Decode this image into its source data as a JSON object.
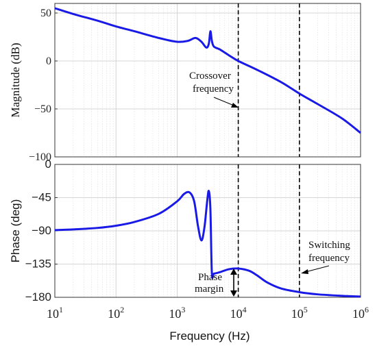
{
  "chart_data": [
    {
      "type": "line",
      "panel": "magnitude",
      "ylabel": "Magnitude (dB)",
      "xscale": "log",
      "xlim": [
        10,
        1000000
      ],
      "ylim": [
        -100,
        60
      ],
      "yticks": [
        -100,
        -50,
        0,
        50
      ],
      "ytick_labels": [
        "−100",
        "−50",
        "0",
        "50"
      ],
      "grid": true,
      "series": [
        {
          "x": [
            10,
            20,
            50,
            100,
            200,
            500,
            1000,
            1500,
            2000,
            2500,
            3000,
            3300,
            3500,
            3700,
            4000,
            5000,
            7000,
            10000,
            20000,
            50000,
            100000,
            200000,
            500000,
            1000000
          ],
          "values": [
            55,
            49,
            42,
            36,
            31,
            24,
            20,
            21,
            24,
            20,
            14,
            18,
            31,
            21,
            15,
            12,
            6,
            0,
            -9,
            -22,
            -34,
            -45,
            -60,
            -75
          ]
        }
      ],
      "vlines": [
        10000,
        100000
      ],
      "annotations": [
        {
          "text": [
            "Crossover",
            "frequency"
          ],
          "arrow_to": [
            10000,
            -50
          ]
        }
      ]
    },
    {
      "type": "line",
      "panel": "phase",
      "ylabel": "Phase (deg)",
      "xlabel": "Frequency  (Hz)",
      "xscale": "log",
      "xlim": [
        10,
        1000000
      ],
      "ylim": [
        -180,
        0
      ],
      "yticks": [
        -180,
        -135,
        -90,
        -45,
        0
      ],
      "ytick_labels": [
        "−180",
        "−135",
        "−90",
        "−45",
        "0"
      ],
      "xticks": [
        10,
        100,
        1000,
        10000,
        100000,
        1000000
      ],
      "xtick_labels": [
        [
          "10",
          "1"
        ],
        [
          "10",
          "2"
        ],
        [
          "10",
          "3"
        ],
        [
          "10",
          "4"
        ],
        [
          "10",
          "5"
        ],
        [
          "10",
          "6"
        ]
      ],
      "grid": true,
      "series": [
        {
          "x": [
            10,
            20,
            50,
            100,
            200,
            500,
            1000,
            1300,
            1600,
            1900,
            2200,
            2500,
            2800,
            3100,
            3300,
            3500,
            3700,
            4000,
            5000,
            7000,
            10000,
            15000,
            20000,
            30000,
            50000,
            100000,
            200000,
            500000,
            1000000
          ],
          "values": [
            -89,
            -88,
            -86,
            -83,
            -78,
            -67,
            -50,
            -40,
            -38,
            -50,
            -84,
            -103,
            -85,
            -50,
            -36,
            -60,
            -147,
            -148,
            -146,
            -142,
            -141,
            -144,
            -150,
            -160,
            -168,
            -173,
            -176,
            -178,
            -179
          ]
        }
      ],
      "vlines": [
        10000,
        100000
      ],
      "annotations": [
        {
          "text": [
            "Switching",
            "frequency"
          ],
          "arrow_to": [
            100000,
            -145
          ]
        },
        {
          "text": [
            "Phase",
            "margin"
          ],
          "arrow_between": [
            [
              10000,
              -141
            ],
            [
              10000,
              -180
            ]
          ]
        }
      ]
    }
  ]
}
